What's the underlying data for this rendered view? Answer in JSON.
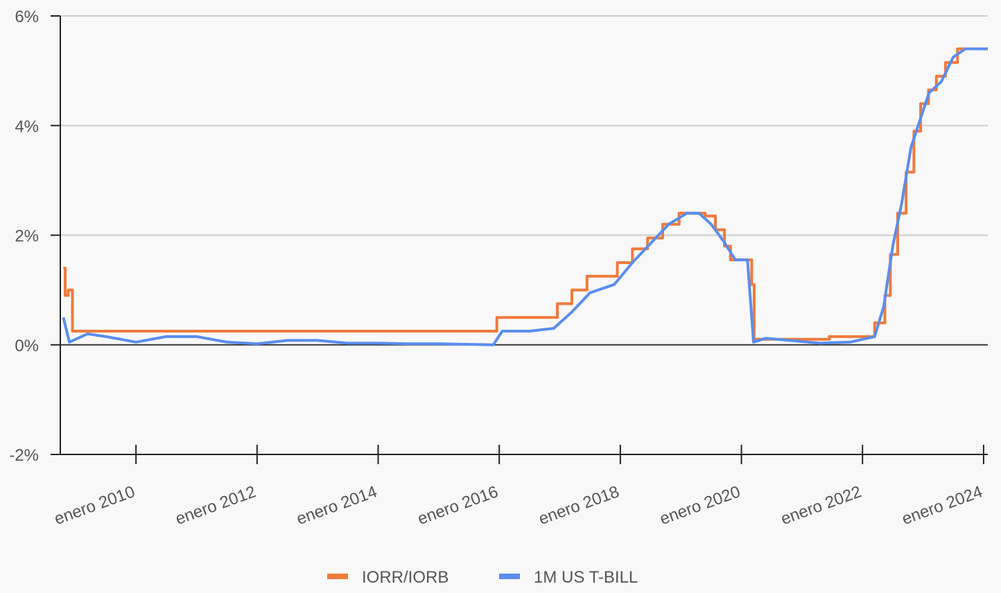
{
  "chart_data": {
    "type": "line",
    "xlim": [
      2008.75,
      2024.07
    ],
    "xticks": [
      {
        "value": 2010,
        "label": "enero 2010"
      },
      {
        "value": 2012,
        "label": "enero 2012"
      },
      {
        "value": 2014,
        "label": "enero 2014"
      },
      {
        "value": 2016,
        "label": "enero 2016"
      },
      {
        "value": 2018,
        "label": "enero 2018"
      },
      {
        "value": 2020,
        "label": "enero 2020"
      },
      {
        "value": 2022,
        "label": "enero 2022"
      },
      {
        "value": 2024,
        "label": "enero 2024"
      }
    ],
    "ylim": [
      -2,
      6
    ],
    "yticks": [
      {
        "value": -2,
        "label": "-2%"
      },
      {
        "value": 0,
        "label": "0%"
      },
      {
        "value": 2,
        "label": "2%"
      },
      {
        "value": 4,
        "label": "4%"
      },
      {
        "value": 6,
        "label": "6%"
      }
    ],
    "grid": true,
    "legend": "bottom",
    "series": [
      {
        "name": "IORR/IORB",
        "color": "#ef7a3b",
        "x": [
          2008.8,
          2008.83,
          2008.83,
          2008.88,
          2008.88,
          2008.95,
          2008.95,
          2015.96,
          2015.96,
          2016.96,
          2016.96,
          2017.2,
          2017.2,
          2017.45,
          2017.45,
          2017.95,
          2017.95,
          2018.2,
          2018.2,
          2018.45,
          2018.45,
          2018.7,
          2018.7,
          2018.97,
          2018.97,
          2019.4,
          2019.4,
          2019.57,
          2019.57,
          2019.72,
          2019.72,
          2019.82,
          2019.82,
          2020.17,
          2020.17,
          2020.21,
          2020.21,
          2021.45,
          2021.45,
          2022.2,
          2022.2,
          2022.37,
          2022.37,
          2022.46,
          2022.46,
          2022.58,
          2022.58,
          2022.72,
          2022.72,
          2022.85,
          2022.85,
          2022.96,
          2022.96,
          2023.09,
          2023.09,
          2023.22,
          2023.22,
          2023.37,
          2023.37,
          2023.57,
          2023.57,
          2024.07
        ],
        "values": [
          1.4,
          1.4,
          0.9,
          0.9,
          1.0,
          1.0,
          0.25,
          0.25,
          0.5,
          0.5,
          0.75,
          0.75,
          1.0,
          1.0,
          1.25,
          1.25,
          1.5,
          1.5,
          1.75,
          1.75,
          1.95,
          1.95,
          2.2,
          2.2,
          2.4,
          2.4,
          2.35,
          2.35,
          2.1,
          2.1,
          1.8,
          1.8,
          1.55,
          1.55,
          1.1,
          1.1,
          0.1,
          0.1,
          0.15,
          0.15,
          0.4,
          0.4,
          0.9,
          0.9,
          1.65,
          1.65,
          2.4,
          2.4,
          3.15,
          3.15,
          3.9,
          3.9,
          4.4,
          4.4,
          4.65,
          4.65,
          4.9,
          4.9,
          5.15,
          5.15,
          5.4,
          5.4
        ]
      },
      {
        "name": "1M US T-BILL",
        "color": "#5a8ded",
        "x": [
          2008.8,
          2008.9,
          2009.2,
          2009.5,
          2010.0,
          2010.5,
          2011.0,
          2011.5,
          2012.0,
          2012.5,
          2013.0,
          2013.5,
          2014.0,
          2014.5,
          2015.0,
          2015.9,
          2016.05,
          2016.5,
          2016.9,
          2017.2,
          2017.5,
          2017.9,
          2018.2,
          2018.5,
          2018.8,
          2019.1,
          2019.3,
          2019.5,
          2019.7,
          2019.9,
          2020.1,
          2020.2,
          2020.4,
          2020.8,
          2021.3,
          2021.8,
          2022.2,
          2022.35,
          2022.5,
          2022.65,
          2022.8,
          2022.95,
          2023.1,
          2023.3,
          2023.5,
          2023.7,
          2024.07
        ],
        "values": [
          0.5,
          0.05,
          0.2,
          0.15,
          0.05,
          0.15,
          0.15,
          0.05,
          0.02,
          0.08,
          0.08,
          0.03,
          0.03,
          0.02,
          0.02,
          0.0,
          0.25,
          0.25,
          0.3,
          0.6,
          0.95,
          1.1,
          1.5,
          1.85,
          2.2,
          2.4,
          2.4,
          2.2,
          1.9,
          1.55,
          1.55,
          0.05,
          0.12,
          0.08,
          0.03,
          0.05,
          0.15,
          0.7,
          1.8,
          2.6,
          3.6,
          4.1,
          4.6,
          4.8,
          5.25,
          5.4,
          5.4
        ]
      }
    ]
  }
}
